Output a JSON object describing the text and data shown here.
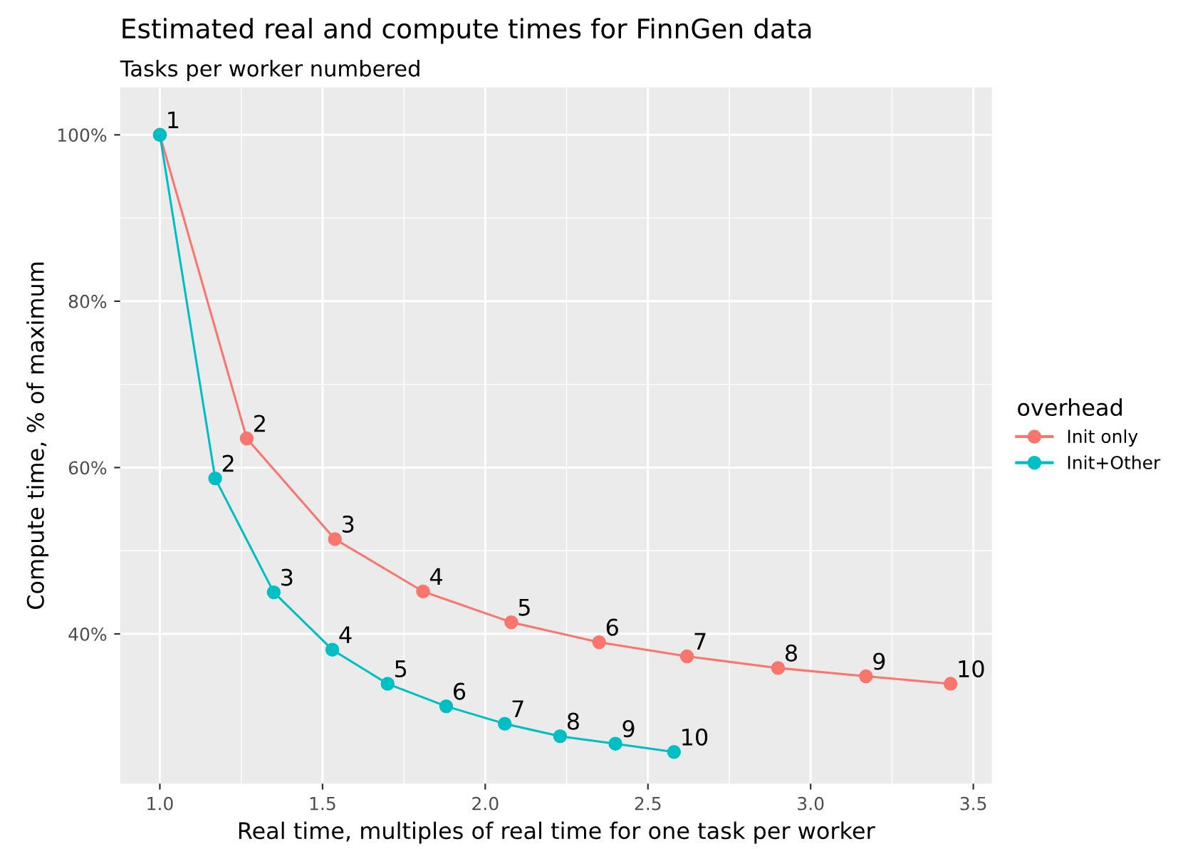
{
  "chart_data": {
    "type": "line",
    "title": "Estimated real and compute times for FinnGen data",
    "subtitle": "Tasks per worker numbered",
    "xlabel": "Real time, multiples of real time for one task per worker",
    "ylabel": "Compute time, % of maximum",
    "legend_title": "overhead",
    "legend": "right",
    "grid": true,
    "marker": "circle",
    "line_style": "solid",
    "xlim": [
      0.878,
      3.557
    ],
    "xticks": [
      {
        "value": 1.0,
        "label": "1.0"
      },
      {
        "value": 1.5,
        "label": "1.5"
      },
      {
        "value": 2.0,
        "label": "2.0"
      },
      {
        "value": 2.5,
        "label": "2.5"
      },
      {
        "value": 3.0,
        "label": "3.0"
      },
      {
        "value": 3.5,
        "label": "3.5"
      }
    ],
    "ylim": [
      22.0,
      105.7
    ],
    "yticks": [
      {
        "value": 40,
        "label": "40%"
      },
      {
        "value": 60,
        "label": "60%"
      },
      {
        "value": 80,
        "label": "80%"
      },
      {
        "value": 100,
        "label": "100%"
      }
    ],
    "series": [
      {
        "name": "Init only",
        "color": "#f8766d",
        "x": [
          1.0,
          1.267,
          1.538,
          1.809,
          2.08,
          2.35,
          2.62,
          2.9,
          3.17,
          3.43
        ],
        "values": [
          100,
          63.5,
          51.4,
          45.1,
          41.4,
          39.0,
          37.3,
          35.9,
          34.9,
          34.0
        ]
      },
      {
        "name": "Init+Other",
        "color": "#00bfc4",
        "x": [
          1.0,
          1.17,
          1.35,
          1.53,
          1.7,
          1.88,
          2.06,
          2.23,
          2.4,
          2.58
        ],
        "values": [
          100,
          58.7,
          45.0,
          38.1,
          34.0,
          31.3,
          29.2,
          27.7,
          26.8,
          25.8
        ]
      }
    ],
    "annotations": [
      {
        "text": "1",
        "x": 1.0,
        "y": 100
      },
      {
        "text": "2",
        "x": 1.267,
        "y": 63.5
      },
      {
        "text": "3",
        "x": 1.538,
        "y": 51.4
      },
      {
        "text": "4",
        "x": 1.809,
        "y": 45.1
      },
      {
        "text": "5",
        "x": 2.08,
        "y": 41.4
      },
      {
        "text": "6",
        "x": 2.35,
        "y": 39.0
      },
      {
        "text": "7",
        "x": 2.62,
        "y": 37.3
      },
      {
        "text": "8",
        "x": 2.9,
        "y": 35.9
      },
      {
        "text": "9",
        "x": 3.17,
        "y": 34.9
      },
      {
        "text": "10",
        "x": 3.43,
        "y": 34.0
      },
      {
        "text": "2",
        "x": 1.17,
        "y": 58.7
      },
      {
        "text": "3",
        "x": 1.35,
        "y": 45.0
      },
      {
        "text": "4",
        "x": 1.53,
        "y": 38.1
      },
      {
        "text": "5",
        "x": 1.7,
        "y": 34.0
      },
      {
        "text": "6",
        "x": 1.88,
        "y": 31.3
      },
      {
        "text": "7",
        "x": 2.06,
        "y": 29.2
      },
      {
        "text": "8",
        "x": 2.23,
        "y": 27.7
      },
      {
        "text": "9",
        "x": 2.4,
        "y": 26.8
      },
      {
        "text": "10",
        "x": 2.58,
        "y": 25.8
      }
    ]
  }
}
